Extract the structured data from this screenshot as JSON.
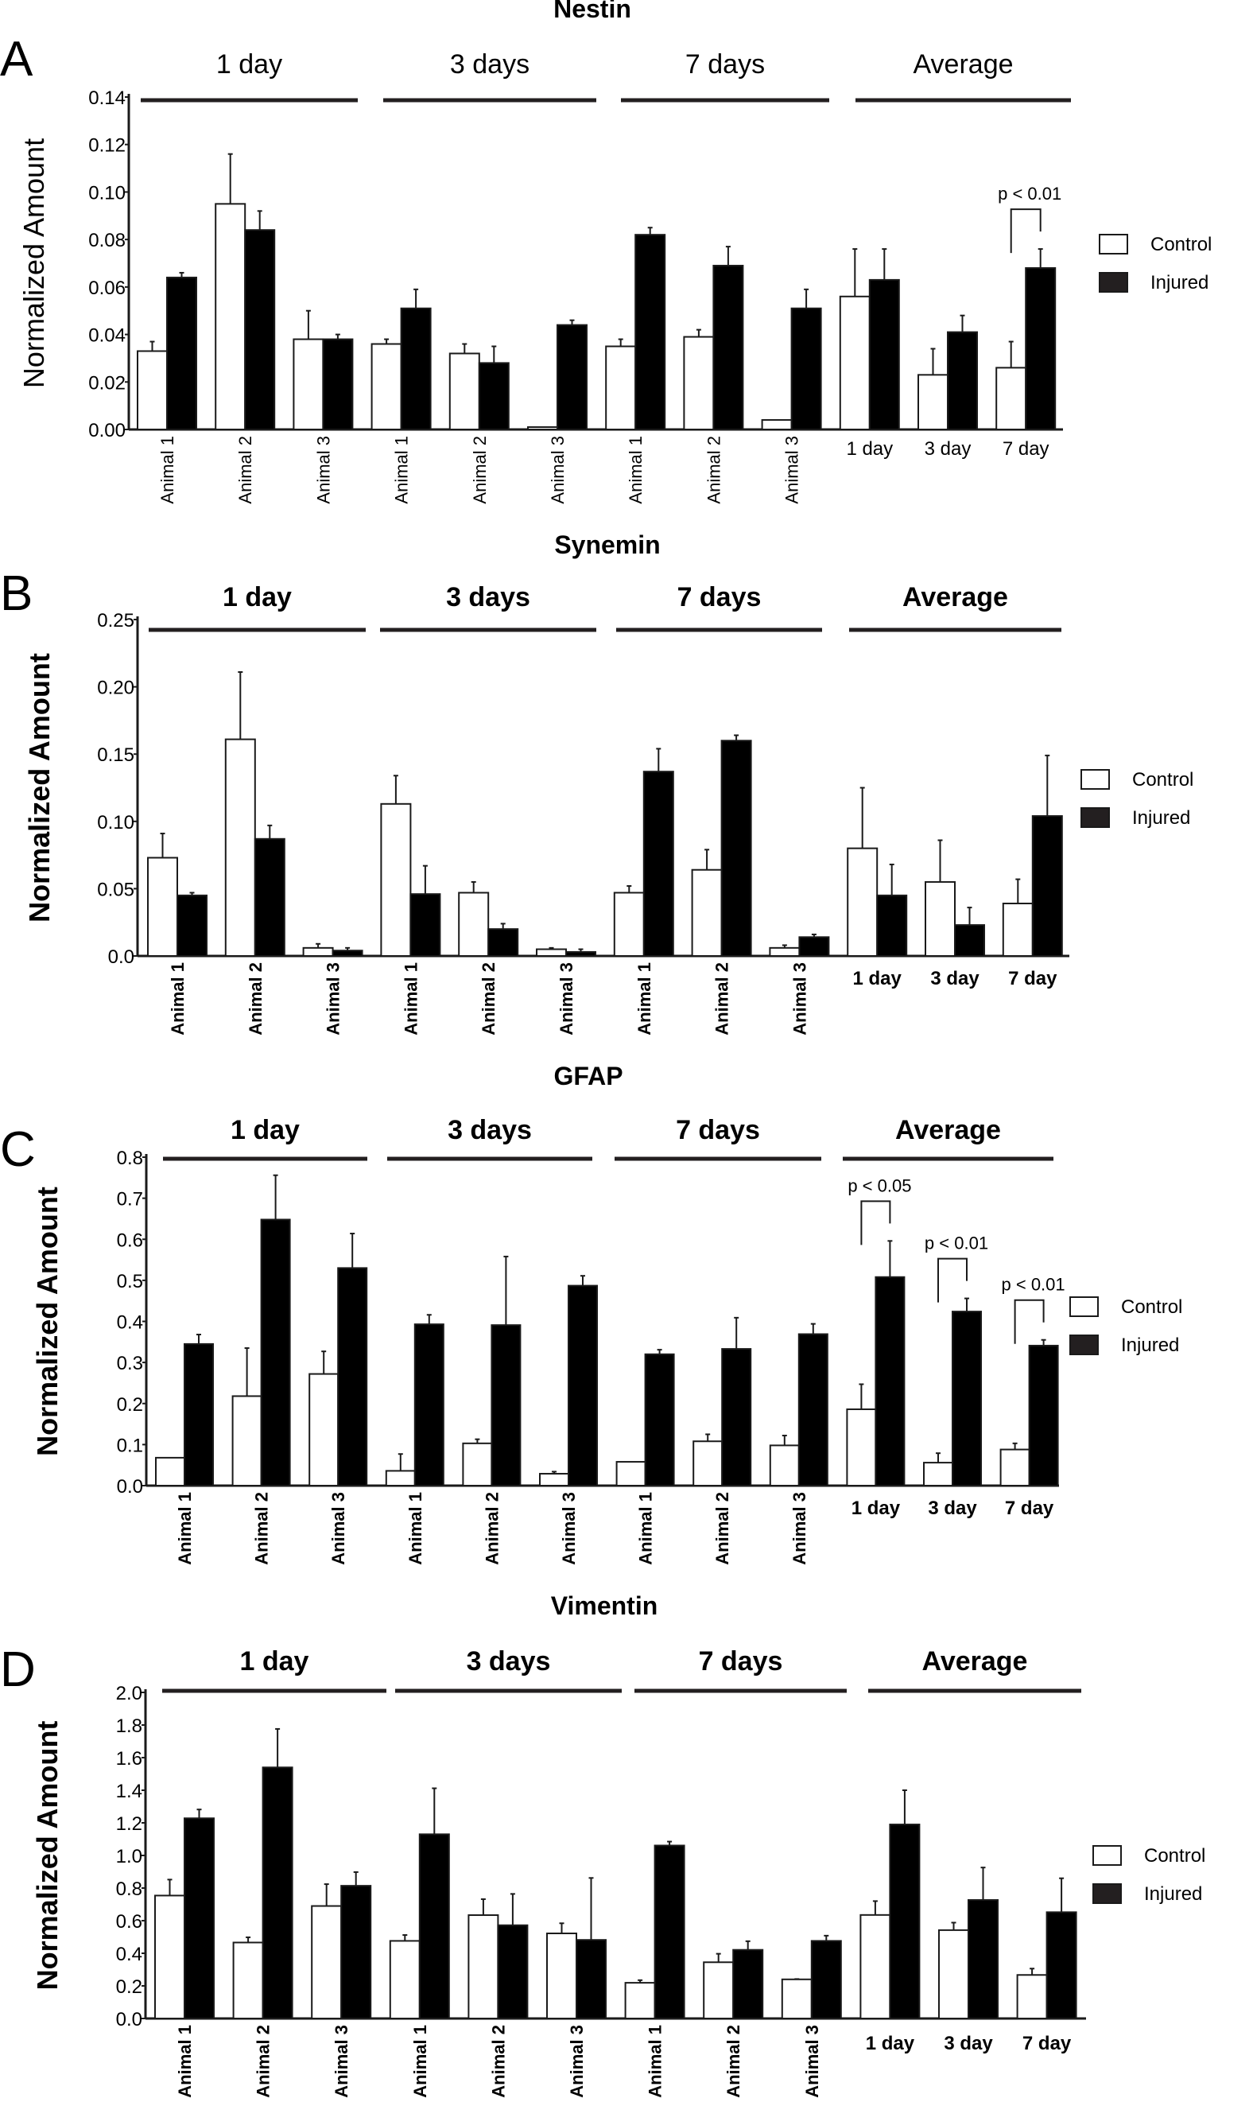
{
  "figure": {
    "colors": {
      "control": "#ffffff",
      "injured": "#000000",
      "stroke": "#1a1a1a",
      "legend_injured": "#231f20"
    }
  },
  "chart_data": [
    {
      "type": "bar",
      "panel": "A",
      "title": "Nestin",
      "ylabel": "Normalized Amount",
      "xlabel": "",
      "ylim": [
        0,
        0.14
      ],
      "yticks": [
        "0.00",
        "0.02",
        "0.04",
        "0.06",
        "0.08",
        "0.10",
        "0.12",
        "0.14"
      ],
      "ytick_values": [
        0,
        0.02,
        0.04,
        0.06,
        0.08,
        0.1,
        0.12,
        0.14
      ],
      "group_headers": [
        "1 day",
        "3 days",
        "7 days",
        "Average"
      ],
      "categories": [
        "Animal 1",
        "Animal 2",
        "Animal 3",
        "Animal 1",
        "Animal 2",
        "Animal 3",
        "Animal 1",
        "Animal 2",
        "Animal 3",
        "1 day",
        "3 day",
        "7 day"
      ],
      "series": [
        {
          "name": "Control",
          "values": [
            0.033,
            0.095,
            0.038,
            0.036,
            0.032,
            0.001,
            0.035,
            0.039,
            0.004,
            0.056,
            0.023,
            0.026
          ],
          "error_top": [
            0.037,
            0.116,
            0.05,
            0.038,
            0.036,
            0.001,
            0.038,
            0.042,
            0.004,
            0.076,
            0.034,
            0.037
          ]
        },
        {
          "name": "Injured",
          "values": [
            0.064,
            0.084,
            0.038,
            0.051,
            0.028,
            0.044,
            0.082,
            0.069,
            0.051,
            0.063,
            0.041,
            0.068
          ],
          "error_top": [
            0.066,
            0.092,
            0.04,
            0.059,
            0.035,
            0.046,
            0.085,
            0.077,
            0.059,
            0.076,
            0.048,
            0.076
          ]
        }
      ],
      "legend": [
        "Control",
        "Injured"
      ],
      "legend_position": "right",
      "annotations": [
        {
          "text": "p < 0.01",
          "category": "7 day"
        }
      ],
      "grid": false,
      "bold_labels": false
    },
    {
      "type": "bar",
      "panel": "B",
      "title": "Synemin",
      "ylabel": "Normalized Amount",
      "xlabel": "",
      "ylim": [
        0,
        0.25
      ],
      "yticks": [
        "0.0",
        "0.05",
        "0.10",
        "0.15",
        "0.20",
        "0.25"
      ],
      "ytick_values": [
        0,
        0.05,
        0.1,
        0.15,
        0.2,
        0.25
      ],
      "group_headers": [
        "1 day",
        "3 days",
        "7 days",
        "Average"
      ],
      "categories": [
        "Animal 1",
        "Animal 2",
        "Animal 3",
        "Animal 1",
        "Animal 2",
        "Animal 3",
        "Animal 1",
        "Animal 2",
        "Animal 3",
        "1 day",
        "3 day",
        "7 day"
      ],
      "series": [
        {
          "name": "Control",
          "values": [
            0.073,
            0.161,
            0.006,
            0.113,
            0.047,
            0.005,
            0.047,
            0.064,
            0.006,
            0.08,
            0.055,
            0.039
          ],
          "error_top": [
            0.091,
            0.211,
            0.009,
            0.134,
            0.055,
            0.006,
            0.052,
            0.079,
            0.008,
            0.125,
            0.086,
            0.057
          ]
        },
        {
          "name": "Injured",
          "values": [
            0.045,
            0.087,
            0.004,
            0.046,
            0.02,
            0.003,
            0.137,
            0.16,
            0.014,
            0.045,
            0.023,
            0.104
          ],
          "error_top": [
            0.047,
            0.097,
            0.006,
            0.067,
            0.024,
            0.005,
            0.154,
            0.164,
            0.016,
            0.068,
            0.036,
            0.149
          ]
        }
      ],
      "legend": [
        "Control",
        "Injured"
      ],
      "legend_position": "right",
      "annotations": [],
      "grid": false,
      "bold_labels": true
    },
    {
      "type": "bar",
      "panel": "C",
      "title": "GFAP",
      "ylabel": "Normalized Amount",
      "xlabel": "",
      "ylim": [
        0,
        0.8
      ],
      "yticks": [
        "0.0",
        "0.1",
        "0.2",
        "0.3",
        "0.4",
        "0.5",
        "0.6",
        "0.7",
        "0.8"
      ],
      "ytick_values": [
        0,
        0.1,
        0.2,
        0.3,
        0.4,
        0.5,
        0.6,
        0.7,
        0.8
      ],
      "group_headers": [
        "1 day",
        "3 days",
        "7 days",
        "Average"
      ],
      "categories": [
        "Animal 1",
        "Animal 2",
        "Animal 3",
        "Animal 1",
        "Animal 2",
        "Animal 3",
        "Animal 1",
        "Animal 2",
        "Animal 3",
        "1 day",
        "3 day",
        "7 day"
      ],
      "series": [
        {
          "name": "Control",
          "values": [
            0.068,
            0.218,
            0.272,
            0.036,
            0.103,
            0.029,
            0.058,
            0.108,
            0.098,
            0.186,
            0.056,
            0.088
          ],
          "error_top": [
            0.068,
            0.335,
            0.327,
            0.077,
            0.113,
            0.034,
            0.058,
            0.125,
            0.122,
            0.247,
            0.079,
            0.103
          ]
        },
        {
          "name": "Injured",
          "values": [
            0.345,
            0.648,
            0.53,
            0.393,
            0.391,
            0.487,
            0.32,
            0.333,
            0.369,
            0.508,
            0.424,
            0.341
          ],
          "error_top": [
            0.368,
            0.756,
            0.614,
            0.416,
            0.558,
            0.511,
            0.331,
            0.409,
            0.394,
            0.596,
            0.456,
            0.355
          ]
        }
      ],
      "legend": [
        "Control",
        "Injured"
      ],
      "legend_position": "right",
      "annotations": [
        {
          "text": "p < 0.05",
          "category": "1 day"
        },
        {
          "text": "p < 0.01",
          "category": "3 day"
        },
        {
          "text": "p < 0.01",
          "category": "7 day"
        }
      ],
      "grid": false,
      "bold_labels": true
    },
    {
      "type": "bar",
      "panel": "D",
      "title": "Vimentin",
      "ylabel": "Normalized Amount",
      "xlabel": "",
      "ylim": [
        0,
        2.0
      ],
      "yticks": [
        "0.0",
        "0.2",
        "0.4",
        "0.6",
        "0.8",
        "1.0",
        "1.2",
        "1.4",
        "1.6",
        "1.8",
        "2.0"
      ],
      "ytick_values": [
        0,
        0.2,
        0.4,
        0.6,
        0.8,
        1.0,
        1.2,
        1.4,
        1.6,
        1.8,
        2.0
      ],
      "group_headers": [
        "1 day",
        "3 days",
        "7 days",
        "Average"
      ],
      "categories": [
        "Animal 1",
        "Animal 2",
        "Animal 3",
        "Animal 1",
        "Animal 2",
        "Animal 3",
        "Animal 1",
        "Animal 2",
        "Animal 3",
        "1 day",
        "3 day",
        "7 day"
      ],
      "series": [
        {
          "name": "Control",
          "values": [
            0.754,
            0.466,
            0.69,
            0.476,
            0.634,
            0.522,
            0.219,
            0.345,
            0.24,
            0.635,
            0.542,
            0.267
          ],
          "error_top": [
            0.852,
            0.498,
            0.824,
            0.512,
            0.732,
            0.584,
            0.235,
            0.397,
            0.242,
            0.72,
            0.588,
            0.306
          ]
        },
        {
          "name": "Injured",
          "values": [
            1.228,
            1.54,
            0.814,
            1.13,
            0.572,
            0.482,
            1.061,
            0.421,
            0.476,
            1.19,
            0.727,
            0.652
          ],
          "error_top": [
            1.282,
            1.776,
            0.898,
            1.412,
            0.764,
            0.862,
            1.085,
            0.474,
            0.508,
            1.4,
            0.926,
            0.86
          ]
        }
      ],
      "legend": [
        "Control",
        "Injured"
      ],
      "legend_position": "right",
      "annotations": [],
      "grid": false,
      "bold_labels": true
    }
  ]
}
